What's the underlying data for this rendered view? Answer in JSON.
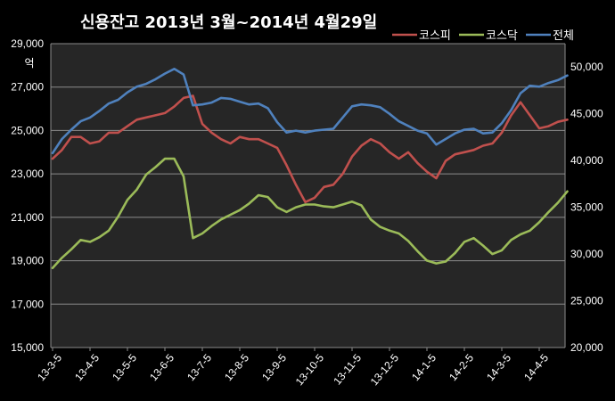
{
  "chart_data": {
    "type": "line",
    "title": "신용잔고 2013년 3월~2014년 4월29일",
    "ylabel": "억",
    "x_categories": [
      "13-3-5",
      "13-4-5",
      "13-5-5",
      "13-6-5",
      "13-7-5",
      "13-8-5",
      "13-9-5",
      "13-10-5",
      "13-11-5",
      "13-12-5",
      "14-1-5",
      "14-2-5",
      "14-3-5",
      "14-4-5"
    ],
    "left_axis": {
      "ylim": [
        15000,
        29000
      ],
      "ticks": [
        "15,000",
        "17,000",
        "19,000",
        "21,000",
        "23,000",
        "25,000",
        "27,000",
        "29,000"
      ]
    },
    "right_axis": {
      "ylim": [
        20000,
        52500
      ],
      "ticks": [
        "20,000",
        "25,000",
        "30,000",
        "35,000",
        "40,000",
        "45,000",
        "50,000"
      ]
    },
    "grid": true,
    "legend_position": "top-right",
    "colors": {
      "background": "#000000",
      "plot_area": "#262626",
      "grid": "#8c8c8c",
      "text": "#ffffff",
      "kospi": "#c0504d",
      "kosdaq": "#9bbb59",
      "total": "#4f81bd"
    },
    "series": [
      {
        "name": "코스피",
        "axis": "left",
        "color": "#c0504d",
        "x": [
          0,
          0.25,
          0.5,
          0.75,
          1,
          1.25,
          1.5,
          1.75,
          2,
          2.25,
          2.5,
          2.75,
          3,
          3.25,
          3.5,
          3.75,
          4,
          4.25,
          4.5,
          4.75,
          5,
          5.25,
          5.5,
          5.75,
          6,
          6.25,
          6.5,
          6.75,
          7,
          7.25,
          7.5,
          7.75,
          8,
          8.25,
          8.5,
          8.75,
          9,
          9.25,
          9.5,
          9.75,
          10,
          10.25,
          10.5,
          10.75,
          11,
          11.25,
          11.5,
          11.75,
          12,
          12.25,
          12.5,
          12.75,
          13,
          13.25,
          13.5,
          13.75
        ],
        "y": [
          23700,
          24100,
          24700,
          24700,
          24400,
          24500,
          24900,
          24900,
          25200,
          25500,
          25600,
          25700,
          25800,
          26100,
          26500,
          26600,
          25300,
          24900,
          24600,
          24400,
          24700,
          24600,
          24600,
          24400,
          24200,
          23400,
          22500,
          21700,
          21900,
          22400,
          22500,
          23000,
          23800,
          24300,
          24600,
          24400,
          24000,
          23700,
          24000,
          23500,
          23100,
          22800,
          23600,
          23900,
          24000,
          24100,
          24300,
          24400,
          24900,
          25700,
          26300,
          25700,
          25100,
          25200,
          25400,
          25500
        ]
      },
      {
        "name": "코스닥",
        "axis": "right",
        "color": "#9bbb59",
        "x": [
          0,
          0.25,
          0.5,
          0.75,
          1,
          1.25,
          1.5,
          1.75,
          2,
          2.25,
          2.5,
          2.75,
          3,
          3.25,
          3.5,
          3.75,
          4,
          4.25,
          4.5,
          4.75,
          5,
          5.25,
          5.5,
          5.75,
          6,
          6.25,
          6.5,
          6.75,
          7,
          7.25,
          7.5,
          7.75,
          8,
          8.25,
          8.5,
          8.75,
          9,
          9.25,
          9.5,
          9.75,
          10,
          10.25,
          10.5,
          10.75,
          11,
          11.25,
          11.5,
          11.75,
          12,
          12.25,
          12.5,
          12.75,
          13,
          13.25,
          13.5,
          13.75
        ],
        "y": [
          28500,
          29600,
          30500,
          31500,
          31300,
          31800,
          32500,
          34000,
          35800,
          36900,
          38500,
          39300,
          40200,
          40200,
          38300,
          31700,
          32200,
          33000,
          33700,
          34200,
          34700,
          35400,
          36300,
          36100,
          35000,
          34500,
          35000,
          35300,
          35300,
          35100,
          35000,
          35300,
          35600,
          35200,
          33700,
          32900,
          32500,
          32200,
          31400,
          30300,
          29300,
          29000,
          29200,
          30100,
          31300,
          31700,
          30900,
          30000,
          30400,
          31500,
          32100,
          32500,
          33400,
          34500,
          35500,
          36700
        ]
      },
      {
        "name": "전체",
        "axis": "right",
        "color": "#4f81bd",
        "x": [
          0,
          0.25,
          0.5,
          0.75,
          1,
          1.25,
          1.5,
          1.75,
          2,
          2.25,
          2.5,
          2.75,
          3,
          3.25,
          3.5,
          3.75,
          4,
          4.25,
          4.5,
          4.75,
          5,
          5.25,
          5.5,
          5.75,
          6,
          6.25,
          6.5,
          6.75,
          7,
          7.25,
          7.5,
          7.75,
          8,
          8.25,
          8.5,
          8.75,
          9,
          9.25,
          9.5,
          9.75,
          10,
          10.25,
          10.5,
          10.75,
          11,
          11.25,
          11.5,
          11.75,
          12,
          12.25,
          12.5,
          12.75,
          13,
          13.25,
          13.5,
          13.75
        ],
        "y": [
          40800,
          42300,
          43300,
          44200,
          44600,
          45300,
          46100,
          46500,
          47300,
          47900,
          48200,
          48700,
          49300,
          49800,
          49200,
          45900,
          46000,
          46200,
          46700,
          46600,
          46300,
          46000,
          46100,
          45600,
          44100,
          43000,
          43200,
          43000,
          43200,
          43300,
          43400,
          44600,
          45800,
          46000,
          45900,
          45700,
          45000,
          44200,
          43700,
          43200,
          42900,
          41700,
          42300,
          42900,
          43300,
          43400,
          42900,
          43000,
          44000,
          45400,
          47200,
          48000,
          47900,
          48300,
          48600,
          49100
        ]
      }
    ]
  }
}
